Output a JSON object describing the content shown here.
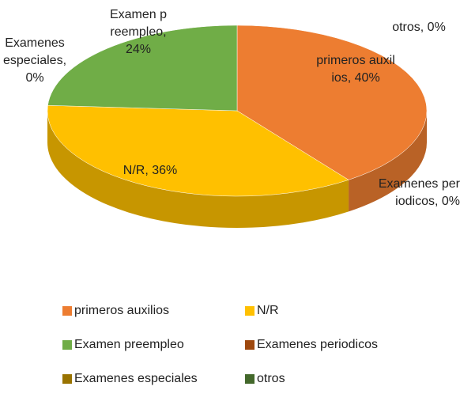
{
  "chart_data": {
    "type": "pie3d",
    "categories": [
      "primeros auxilios",
      "N/R",
      "Examen preempleo",
      "Examenes periodicos",
      "Examenes especiales",
      "otros"
    ],
    "values": [
      40,
      36,
      24,
      0,
      0,
      0
    ],
    "value_labels": [
      "primeros auxilios, 40%",
      "N/R, 36%",
      "Examen preempleo, 24%",
      "Examenes periodicos, 0%",
      "Examenes especiales, 0%",
      "otros, 0%"
    ],
    "colors": [
      "#ED7D31",
      "#FFC000",
      "#70AD47",
      "#9E480E",
      "#997300",
      "#43682B"
    ],
    "legend": "bottom"
  }
}
